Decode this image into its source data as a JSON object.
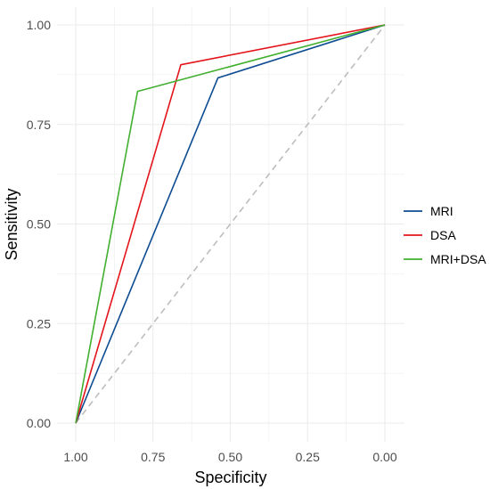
{
  "chart_data": {
    "type": "line",
    "title": "",
    "xlabel": "Specificity",
    "ylabel": "Sensitivity",
    "x_reversed": true,
    "xlim": [
      1.0,
      0.0
    ],
    "ylim": [
      0.0,
      1.0
    ],
    "x_ticks": [
      "1.00",
      "0.75",
      "0.50",
      "0.25",
      "0.00"
    ],
    "y_ticks": [
      "0.00",
      "0.25",
      "0.50",
      "0.75",
      "1.00"
    ],
    "grid": true,
    "legend_position": "right",
    "reference_line": {
      "from": [
        1.0,
        0.0
      ],
      "to": [
        0.0,
        1.0
      ],
      "style": "dashed",
      "color": "#bdbdbd"
    },
    "series": [
      {
        "name": "MRI",
        "color": "#0e4c92",
        "x": [
          1.0,
          0.54,
          0.0
        ],
        "y": [
          0.0,
          0.867,
          1.0
        ]
      },
      {
        "name": "DSA",
        "color": "#e3141b",
        "x": [
          1.0,
          0.66,
          0.0
        ],
        "y": [
          0.0,
          0.9,
          1.0
        ]
      },
      {
        "name": "MRI+DSA",
        "color": "#41b02f",
        "x": [
          1.0,
          0.8,
          0.0
        ],
        "y": [
          0.0,
          0.833,
          1.0
        ]
      }
    ]
  }
}
